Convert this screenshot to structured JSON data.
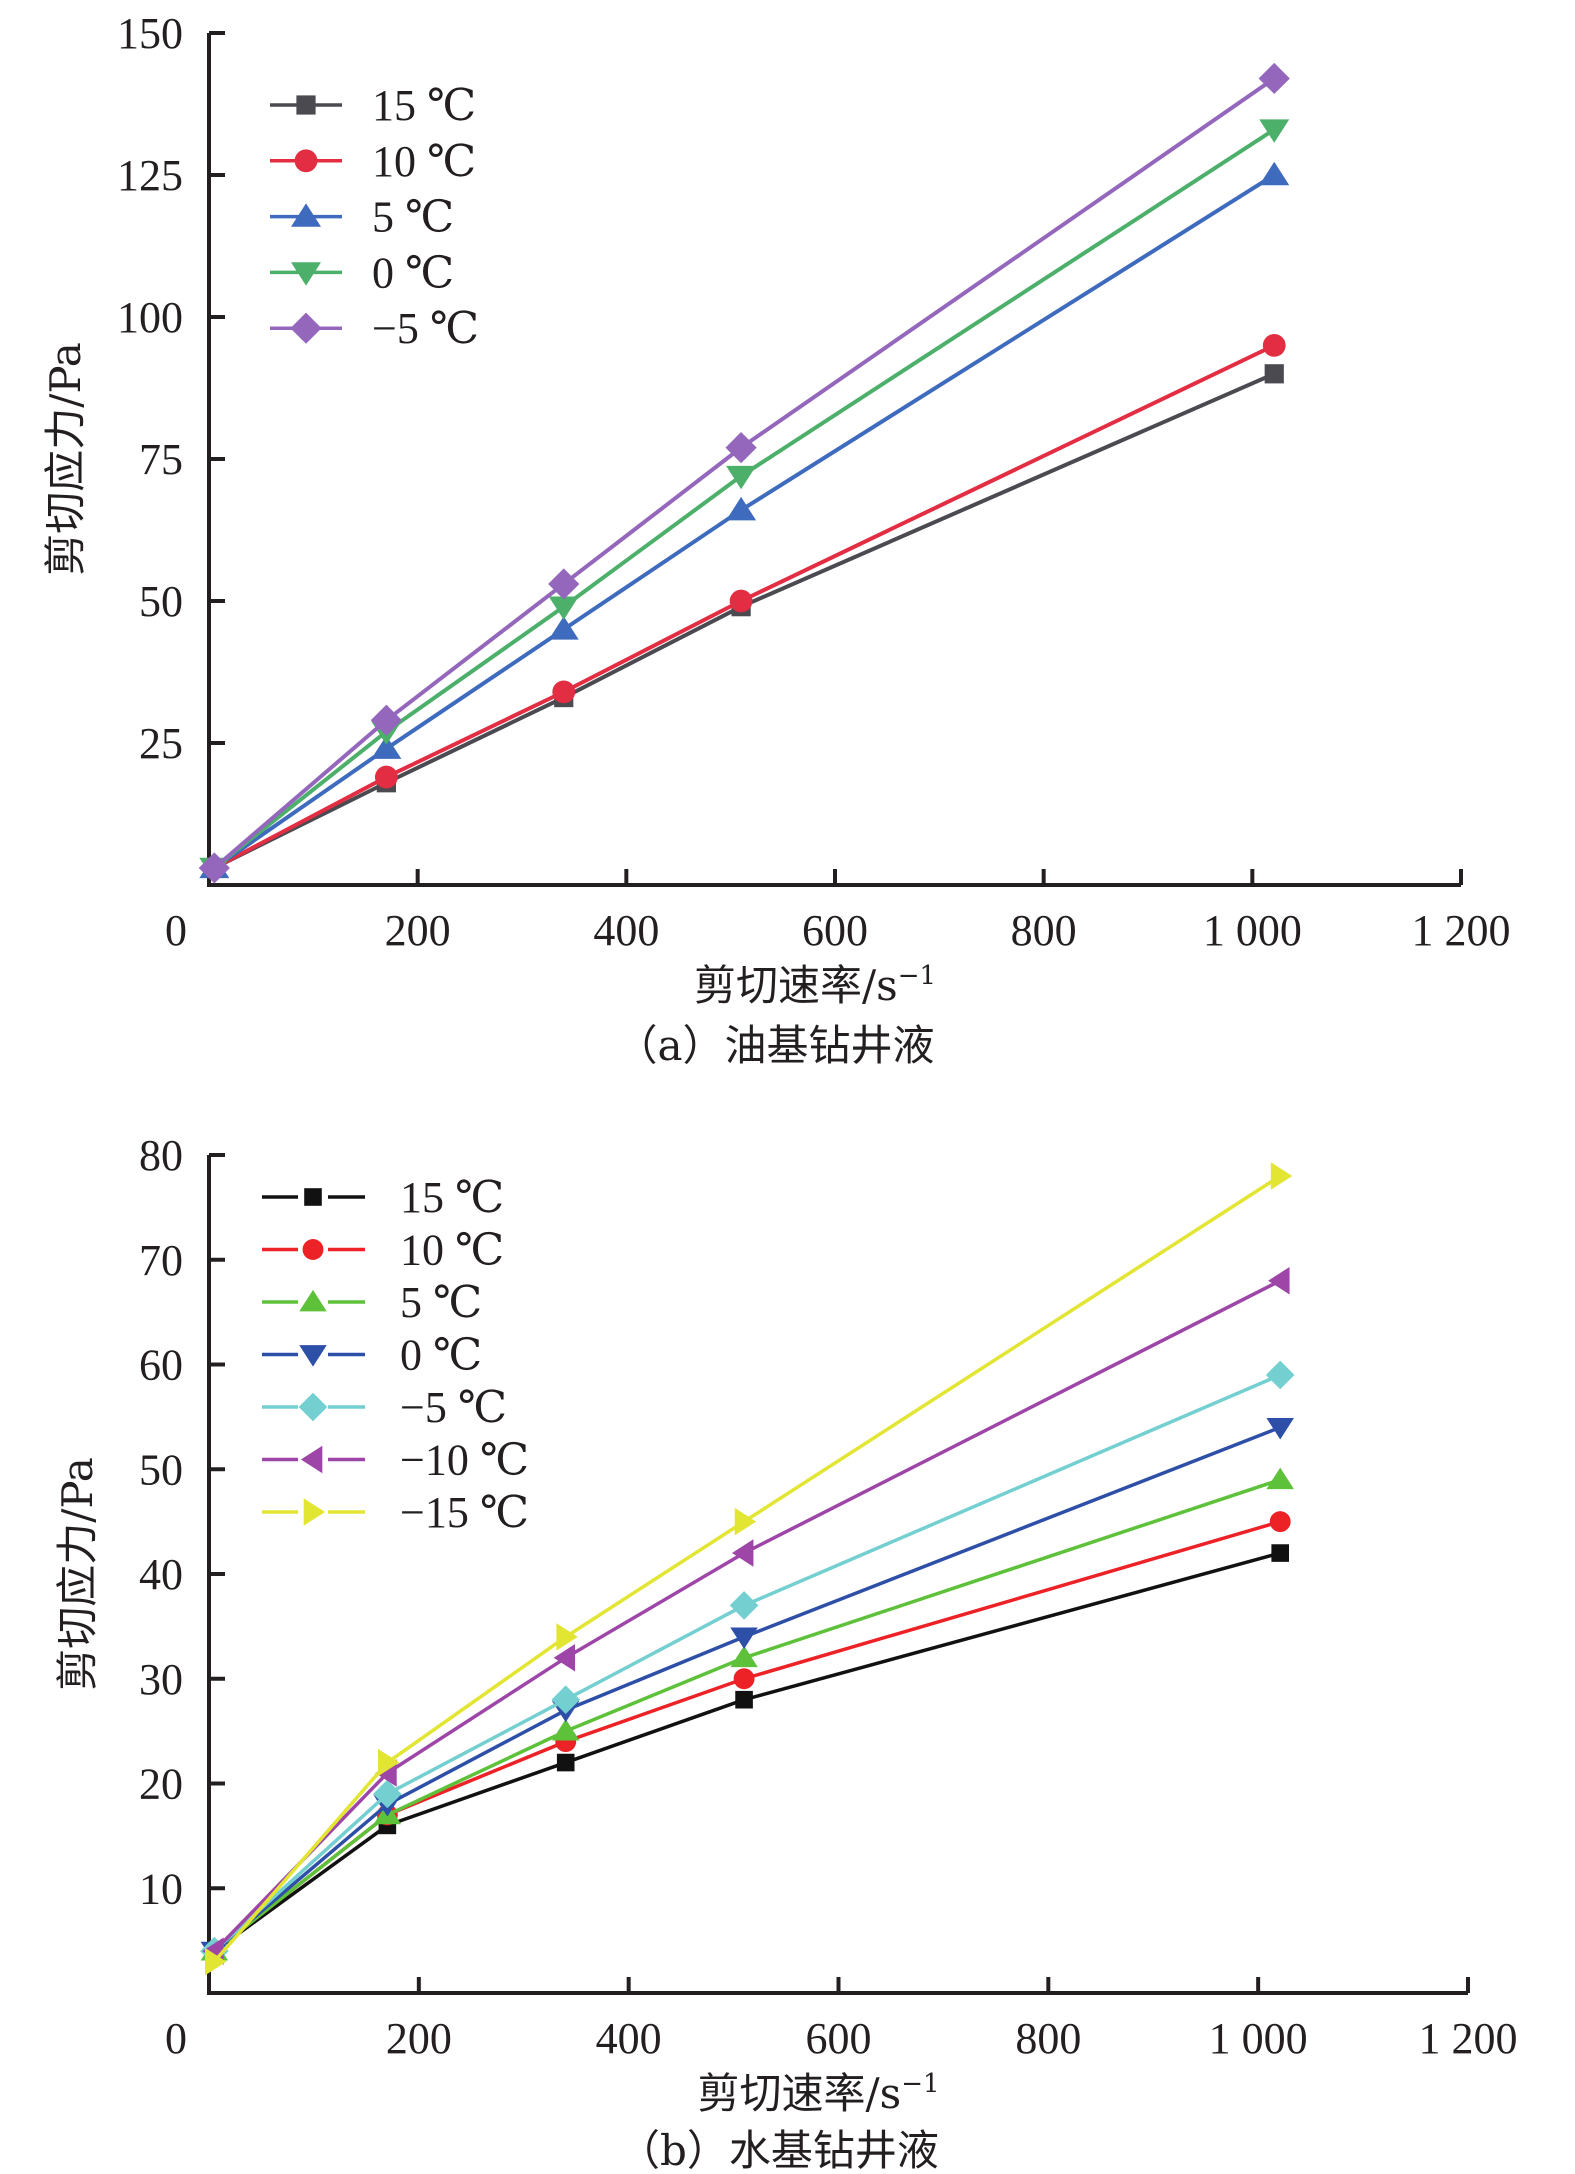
{
  "chart_data": [
    {
      "type": "line",
      "caption": "（a）油基钻井液",
      "xlabel": "剪切速率/s",
      "xlabel_superscript": "−1",
      "ylabel": "剪切应力/Pa",
      "xlim": [
        0,
        1200
      ],
      "ylim": [
        0,
        150
      ],
      "x_ticks": [
        0,
        200,
        400,
        600,
        800,
        1000,
        1200
      ],
      "x_tick_labels": [
        "0",
        "200",
        "400",
        "600",
        "800",
        "1 000",
        "1 200"
      ],
      "y_ticks": [
        25,
        50,
        75,
        100,
        125,
        150
      ],
      "y_tick_labels": [
        "25",
        "50",
        "75",
        "100",
        "125",
        "150"
      ],
      "grid": false,
      "legend_position": "top-left",
      "x": [
        5.1,
        170,
        340,
        510,
        1021
      ],
      "series": [
        {
          "name": "15 ℃",
          "marker": "square",
          "color": "#4a4a50",
          "values": [
            3,
            18,
            33,
            49,
            90
          ]
        },
        {
          "name": "10 ℃",
          "marker": "circle",
          "color": "#e32d43",
          "values": [
            3,
            19,
            34,
            50,
            95
          ]
        },
        {
          "name": "5 ℃",
          "marker": "triangle-up",
          "color": "#3e6bbd",
          "values": [
            3,
            24,
            45,
            66,
            125
          ]
        },
        {
          "name": "0 ℃",
          "marker": "triangle-down",
          "color": "#4caf6a",
          "values": [
            3,
            27,
            49,
            72,
            133
          ]
        },
        {
          "name": "−5 ℃",
          "marker": "diamond",
          "color": "#9467bd",
          "values": [
            3,
            29,
            53,
            77,
            142
          ]
        }
      ]
    },
    {
      "type": "line",
      "caption": "（b）水基钻井液",
      "xlabel": "剪切速率/s",
      "xlabel_superscript": "−1",
      "ylabel": "剪切应力/Pa",
      "xlim": [
        0,
        1200
      ],
      "ylim": [
        0,
        80
      ],
      "x_ticks": [
        0,
        200,
        400,
        600,
        800,
        1000,
        1200
      ],
      "x_tick_labels": [
        "0",
        "200",
        "400",
        "600",
        "800",
        "1 000",
        "1 200"
      ],
      "y_ticks": [
        10,
        20,
        30,
        40,
        50,
        60,
        70,
        80
      ],
      "y_tick_labels": [
        "10",
        "20",
        "30",
        "40",
        "50",
        "60",
        "70",
        "80"
      ],
      "grid": false,
      "legend_position": "top-left",
      "x": [
        5.1,
        170,
        340,
        510,
        1021
      ],
      "series": [
        {
          "name": "15 ℃",
          "marker": "square",
          "color": "#111111",
          "values": [
            4,
            16,
            22,
            28,
            42
          ]
        },
        {
          "name": "10 ℃",
          "marker": "circle",
          "color": "#ec2227",
          "values": [
            4,
            17,
            24,
            30,
            45
          ]
        },
        {
          "name": "5 ℃",
          "marker": "triangle-up",
          "color": "#5ec13a",
          "values": [
            4,
            17,
            25,
            32,
            49
          ]
        },
        {
          "name": "0 ℃",
          "marker": "triangle-down",
          "color": "#2e4fa8",
          "values": [
            4,
            18,
            27,
            34,
            54
          ]
        },
        {
          "name": "−5 ℃",
          "marker": "diamond",
          "color": "#74cfd1",
          "values": [
            4,
            19,
            28,
            37,
            59
          ]
        },
        {
          "name": "−10 ℃",
          "marker": "triangle-left",
          "color": "#9e45a8",
          "values": [
            4,
            21,
            32,
            42,
            68
          ]
        },
        {
          "name": "−15 ℃",
          "marker": "triangle-right",
          "color": "#e2e532",
          "values": [
            3,
            22,
            34,
            45,
            78
          ]
        }
      ]
    }
  ]
}
